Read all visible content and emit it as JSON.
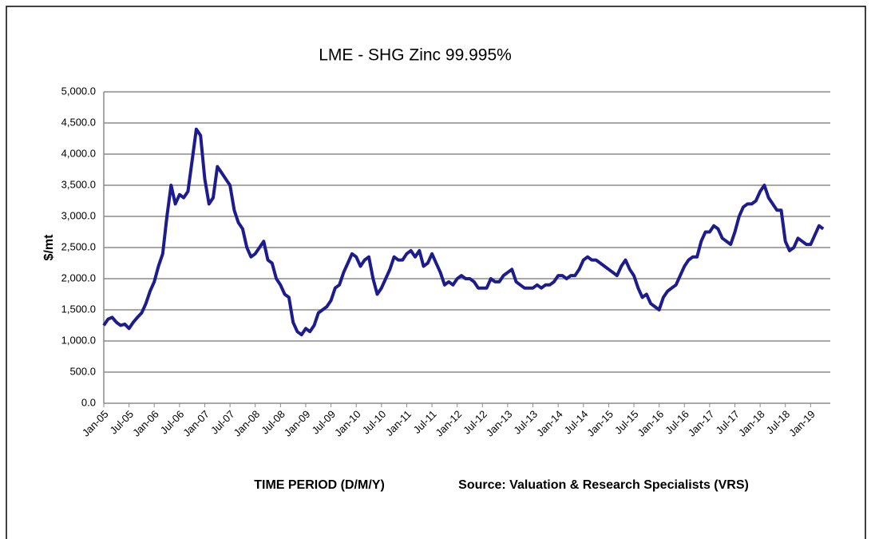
{
  "chart_data": {
    "type": "line",
    "title": "LME - SHG Zinc 99.995%",
    "y_label": "$/mt",
    "x_label": "TIME PERIOD (D/M/Y)",
    "source": "Source: Valuation & Research Specialists (VRS)",
    "categories": [
      "Jan-05",
      null,
      null,
      null,
      null,
      null,
      "Jul-05",
      null,
      null,
      null,
      null,
      null,
      "Jan-06",
      null,
      null,
      null,
      null,
      null,
      "Jul-06",
      null,
      null,
      null,
      null,
      null,
      "Jan-07",
      null,
      null,
      null,
      null,
      null,
      "Jul-07",
      null,
      null,
      null,
      null,
      null,
      "Jan-08",
      null,
      null,
      null,
      null,
      null,
      "Jul-08",
      null,
      null,
      null,
      null,
      null,
      "Jan-09",
      null,
      null,
      null,
      null,
      null,
      "Jul-09",
      null,
      null,
      null,
      null,
      null,
      "Jan-10",
      null,
      null,
      null,
      null,
      null,
      "Jul-10",
      null,
      null,
      null,
      null,
      null,
      "Jan-11",
      null,
      null,
      null,
      null,
      null,
      "Jul-11",
      null,
      null,
      null,
      null,
      null,
      "Jan-12",
      null,
      null,
      null,
      null,
      null,
      "Jul-12",
      null,
      null,
      null,
      null,
      null,
      "Jan-13",
      null,
      null,
      null,
      null,
      null,
      "Jul-13",
      null,
      null,
      null,
      null,
      null,
      "Jan-14",
      null,
      null,
      null,
      null,
      null,
      "Jul-14",
      null,
      null,
      null,
      null,
      null,
      "Jan-15",
      null,
      null,
      null,
      null,
      null,
      "Jul-15",
      null,
      null,
      null,
      null,
      null,
      "Jan-16",
      null,
      null,
      null,
      null,
      null,
      "Jul-16",
      null,
      null,
      null,
      null,
      null,
      "Jan-17",
      null,
      null,
      null,
      null,
      null,
      "Jul-17",
      null,
      null,
      null,
      null,
      null,
      "Jan-18",
      null,
      null,
      null,
      null,
      null,
      "Jul-18",
      null,
      null,
      null,
      null,
      null,
      "Jan-19",
      null,
      null,
      null
    ],
    "series": [
      {
        "color": "#1c1c8f",
        "values": [
          1250,
          1350,
          1380,
          1300,
          1250,
          1270,
          1200,
          1300,
          1380,
          1450,
          1600,
          1800,
          1950,
          2200,
          2400,
          3000,
          3500,
          3200,
          3350,
          3300,
          3400,
          3900,
          4400,
          4300,
          3600,
          3200,
          3300,
          3800,
          3700,
          3600,
          3500,
          3100,
          2900,
          2800,
          2500,
          2350,
          2400,
          2500,
          2600,
          2300,
          2250,
          2000,
          1900,
          1750,
          1700,
          1300,
          1150,
          1100,
          1200,
          1150,
          1250,
          1450,
          1500,
          1550,
          1650,
          1850,
          1900,
          2100,
          2250,
          2400,
          2350,
          2200,
          2300,
          2350,
          2000,
          1750,
          1850,
          2000,
          2150,
          2350,
          2300,
          2300,
          2400,
          2450,
          2350,
          2450,
          2200,
          2250,
          2400,
          2250,
          2100,
          1900,
          1950,
          1900,
          2000,
          2050,
          2000,
          2000,
          1950,
          1850,
          1850,
          1850,
          2000,
          1950,
          1950,
          2050,
          2100,
          2150,
          1950,
          1900,
          1850,
          1850,
          1850,
          1900,
          1850,
          1900,
          1900,
          1950,
          2050,
          2050,
          2000,
          2050,
          2050,
          2150,
          2300,
          2350,
          2300,
          2300,
          2250,
          2200,
          2150,
          2100,
          2050,
          2200,
          2300,
          2150,
          2050,
          1850,
          1700,
          1750,
          1600,
          1550,
          1500,
          1700,
          1800,
          1850,
          1900,
          2050,
          2200,
          2300,
          2350,
          2350,
          2600,
          2750,
          2750,
          2850,
          2800,
          2650,
          2600,
          2550,
          2750,
          3000,
          3150,
          3200,
          3200,
          3250,
          3400,
          3500,
          3300,
          3200,
          3100,
          3100,
          2600,
          2450,
          2500,
          2650,
          2600,
          2550,
          2550,
          2700,
          2850,
          2800
        ]
      }
    ],
    "ylim": [
      0,
      5000
    ],
    "yticks": [
      {
        "value": 0,
        "label": "0.0"
      },
      {
        "value": 500,
        "label": "500.0"
      },
      {
        "value": 1000,
        "label": "1,000.0"
      },
      {
        "value": 1500,
        "label": "1,500.0"
      },
      {
        "value": 2000,
        "label": "2,000.0"
      },
      {
        "value": 2500,
        "label": "2,500.0"
      },
      {
        "value": 3000,
        "label": "3,000.0"
      },
      {
        "value": 3500,
        "label": "3,500.0"
      },
      {
        "value": 4000,
        "label": "4,000.0"
      },
      {
        "value": 4500,
        "label": "4,500.0"
      },
      {
        "value": 5000,
        "label": "5,000.0"
      }
    ],
    "grid": true
  }
}
